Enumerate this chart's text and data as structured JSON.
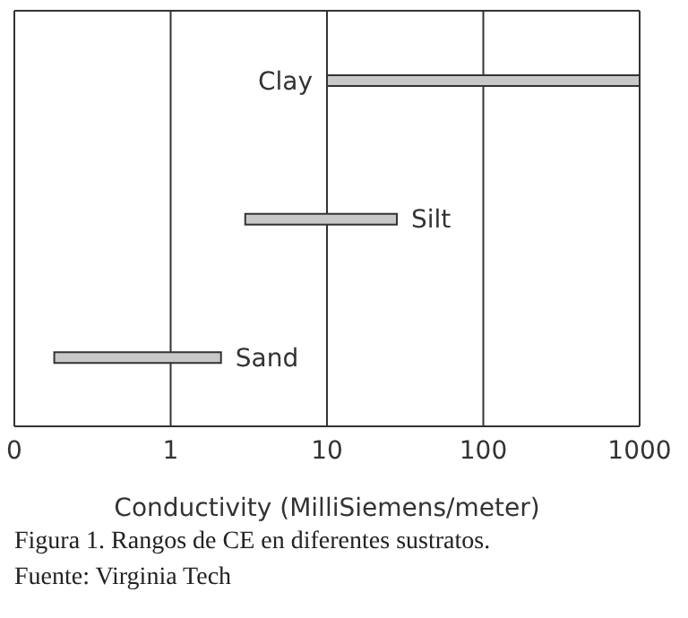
{
  "chart_data": {
    "type": "bar",
    "orientation": "horizontal",
    "categories": [
      "Clay",
      "Silt",
      "Sand"
    ],
    "base": [
      10,
      3,
      0.18
    ],
    "values": [
      990,
      25,
      1.92
    ],
    "color": "#c8c8c8",
    "log": "x",
    "xlim": [
      0.1,
      1000
    ],
    "xticks": [
      {
        "value": 0.1,
        "label": "0"
      },
      1,
      10,
      100,
      1000
    ],
    "xlabel": "Conductivity (MilliSiemens/meter)",
    "grid": "x",
    "tick_labels": "x",
    "annotations": [
      "Figura 1. Rangos de CE en diferentes sustratos.",
      "Fuente: Virginia Tech"
    ]
  }
}
